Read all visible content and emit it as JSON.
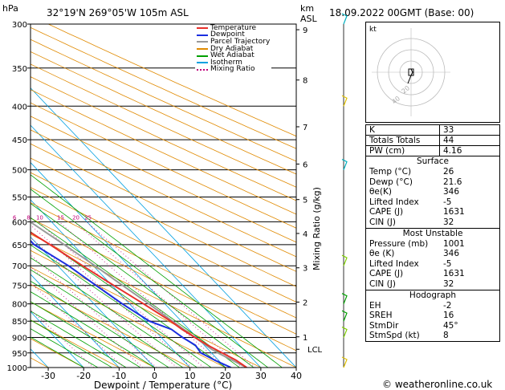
{
  "header": {
    "location": "32°19'N  269°05'W  105m  ASL",
    "datetime": "18.09.2022  00GMT  (Base: 00)",
    "pressure_unit": "hPa",
    "height_unit_line1": "km",
    "height_unit_line2": "ASL"
  },
  "footer": {
    "copyright": "© weatheronline.co.uk"
  },
  "chart_data": {
    "type": "skew-t",
    "xlabel": "Dewpoint / Temperature (°C)",
    "ylabel_right": "Mixing Ratio (g/kg)",
    "x_ticks": [
      "-30",
      "-20",
      "-10",
      "0",
      "10",
      "20",
      "30",
      "40"
    ],
    "xlim": [
      -35,
      40
    ],
    "pressure_levels": [
      "300",
      "350",
      "400",
      "450",
      "500",
      "550",
      "600",
      "650",
      "700",
      "750",
      "800",
      "850",
      "900",
      "950",
      "1000"
    ],
    "pressure_range": [
      300,
      1000
    ],
    "km_ticks": [
      {
        "km": "9",
        "p": 306
      },
      {
        "km": "8",
        "p": 365
      },
      {
        "km": "7",
        "p": 430
      },
      {
        "km": "6",
        "p": 490
      },
      {
        "km": "5",
        "p": 555
      },
      {
        "km": "4",
        "p": 625
      },
      {
        "km": "3",
        "p": 705
      },
      {
        "km": "2",
        "p": 795
      },
      {
        "km": "1",
        "p": 898
      }
    ],
    "lcl": {
      "label": "LCL",
      "p": 938
    },
    "mixing_ratio_labels": [
      "1",
      "2",
      "3",
      "4",
      "6",
      "8",
      "10",
      "15",
      "20",
      "25"
    ],
    "mixing_ratio_values": [
      1,
      2,
      3,
      4,
      6,
      8,
      10,
      15,
      20,
      25
    ],
    "legend": [
      {
        "name": "Temperature",
        "color": "#e8302a",
        "style": "solid"
      },
      {
        "name": "Dewpoint",
        "color": "#1a2ee0",
        "style": "solid"
      },
      {
        "name": "Parcel Trajectory",
        "color": "#999999",
        "style": "solid"
      },
      {
        "name": "Dry Adiabat",
        "color": "#e08a00",
        "style": "solid"
      },
      {
        "name": "Wet Adiabat",
        "color": "#00a000",
        "style": "solid"
      },
      {
        "name": "Isotherm",
        "color": "#00a0e0",
        "style": "solid"
      },
      {
        "name": "Mixing Ratio",
        "color": "#c0007a",
        "style": "dotted"
      }
    ],
    "temperature": [
      {
        "p": 1000,
        "t": 26
      },
      {
        "p": 975,
        "t": 25
      },
      {
        "p": 950,
        "t": 23
      },
      {
        "p": 925,
        "t": 21
      },
      {
        "p": 900,
        "t": 19.5
      },
      {
        "p": 875,
        "t": 18
      },
      {
        "p": 850,
        "t": 17
      },
      {
        "p": 800,
        "t": 14
      },
      {
        "p": 750,
        "t": 10.5
      },
      {
        "p": 700,
        "t": 7
      },
      {
        "p": 650,
        "t": 3.5
      },
      {
        "p": 620,
        "t": 1
      },
      {
        "p": 600,
        "t": -0.5
      },
      {
        "p": 580,
        "t": -2
      },
      {
        "p": 550,
        "t": -4.5
      },
      {
        "p": 500,
        "t": -8.5
      },
      {
        "p": 450,
        "t": -13
      },
      {
        "p": 400,
        "t": -20
      },
      {
        "p": 350,
        "t": -27
      },
      {
        "p": 300,
        "t": -35
      }
    ],
    "dewpoint": [
      {
        "p": 1000,
        "t": 21.6
      },
      {
        "p": 975,
        "t": 19
      },
      {
        "p": 950,
        "t": 17
      },
      {
        "p": 925,
        "t": 17.5
      },
      {
        "p": 900,
        "t": 16
      },
      {
        "p": 875,
        "t": 15
      },
      {
        "p": 850,
        "t": 11
      },
      {
        "p": 800,
        "t": 8
      },
      {
        "p": 750,
        "t": 5.5
      },
      {
        "p": 700,
        "t": 3
      },
      {
        "p": 650,
        "t": -1
      },
      {
        "p": 620,
        "t": -1
      },
      {
        "p": 600,
        "t": -6
      },
      {
        "p": 580,
        "t": -10
      },
      {
        "p": 565,
        "t": -22
      },
      {
        "p": 550,
        "t": -30
      },
      {
        "p": 545,
        "t": -20
      },
      {
        "p": 520,
        "t": -14
      },
      {
        "p": 500,
        "t": -18
      },
      {
        "p": 480,
        "t": -22
      },
      {
        "p": 450,
        "t": -21
      },
      {
        "p": 420,
        "t": -22
      },
      {
        "p": 400,
        "t": -28
      },
      {
        "p": 380,
        "t": -29
      },
      {
        "p": 350,
        "t": -39
      },
      {
        "p": 330,
        "t": -38
      },
      {
        "p": 300,
        "t": -46
      }
    ],
    "parcel": [
      {
        "p": 1000,
        "t": 26
      },
      {
        "p": 950,
        "t": 21.8
      },
      {
        "p": 938,
        "t": 21
      },
      {
        "p": 900,
        "t": 19.5
      },
      {
        "p": 850,
        "t": 17.5
      },
      {
        "p": 800,
        "t": 15.5
      },
      {
        "p": 750,
        "t": 13
      },
      {
        "p": 700,
        "t": 10.5
      },
      {
        "p": 650,
        "t": 7.5
      },
      {
        "p": 600,
        "t": 4
      },
      {
        "p": 550,
        "t": 0
      },
      {
        "p": 500,
        "t": -4
      },
      {
        "p": 450,
        "t": -9
      },
      {
        "p": 400,
        "t": -15
      },
      {
        "p": 370,
        "t": -19
      }
    ],
    "wind_barbs": [
      {
        "p": 300,
        "color": "#00b0c0"
      },
      {
        "p": 400,
        "color": "#e0c000"
      },
      {
        "p": 500,
        "color": "#00b0c0"
      },
      {
        "p": 700,
        "color": "#80d000"
      },
      {
        "p": 800,
        "color": "#00a000"
      },
      {
        "p": 850,
        "color": "#00a000"
      },
      {
        "p": 900,
        "color": "#80d000"
      },
      {
        "p": 1000,
        "color": "#e0c000"
      }
    ]
  },
  "hodograph": {
    "unit_label": "kt",
    "ring_labels": [
      "20",
      "40"
    ]
  },
  "indices": [
    {
      "label": "K",
      "value": "33"
    },
    {
      "label": "Totals Totals",
      "value": "44"
    },
    {
      "label": "PW (cm)",
      "value": "4.16"
    }
  ],
  "surface": {
    "title": "Surface",
    "rows": [
      {
        "label": "Temp (°C)",
        "value": "26"
      },
      {
        "label": "Dewp (°C)",
        "value": "21.6"
      },
      {
        "label": "θe(K)",
        "value": "346"
      },
      {
        "label": "Lifted Index",
        "value": "-5"
      },
      {
        "label": "CAPE (J)",
        "value": "1631"
      },
      {
        "label": "CIN (J)",
        "value": "32"
      }
    ]
  },
  "most_unstable": {
    "title": "Most Unstable",
    "rows": [
      {
        "label": "Pressure (mb)",
        "value": "1001"
      },
      {
        "label": "θe (K)",
        "value": "346"
      },
      {
        "label": "Lifted Index",
        "value": "-5"
      },
      {
        "label": "CAPE (J)",
        "value": "1631"
      },
      {
        "label": "CIN (J)",
        "value": "32"
      }
    ]
  },
  "hodograph_table": {
    "title": "Hodograph",
    "rows": [
      {
        "label": "EH",
        "value": "-2"
      },
      {
        "label": "SREH",
        "value": "16"
      },
      {
        "label": "StmDir",
        "value": "45°"
      },
      {
        "label": "StmSpd (kt)",
        "value": "8"
      }
    ]
  }
}
